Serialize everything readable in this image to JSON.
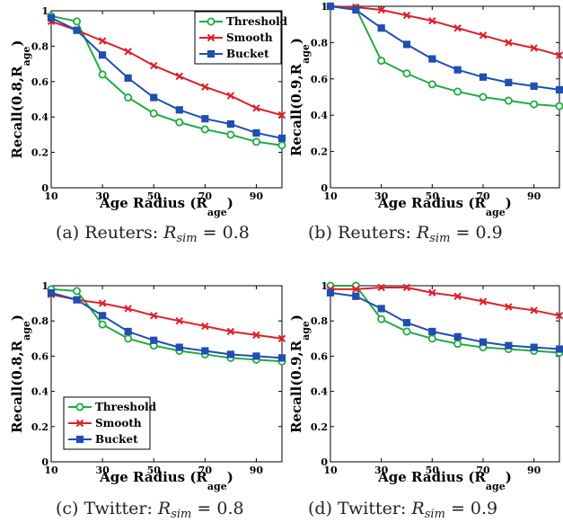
{
  "colors": {
    "Threshold": "#22aa44",
    "Smooth": "#dd1f2b",
    "Bucket": "#1f4fb0"
  },
  "chart_data": [
    {
      "type": "line",
      "caption": {
        "prefix": "(a) Reuters:",
        "symbol": "R",
        "subscript": "sim",
        "value": "= 0.8"
      },
      "xlabel": "Age Radius (R",
      "xlabel_sub": "age",
      "xlabel_close": ")",
      "ylabel": "Recall(0.8,R",
      "ylabel_sub": "age",
      "ylabel_close": ")",
      "xlim": [
        10,
        100
      ],
      "ylim": [
        0,
        1
      ],
      "xticks": [
        10,
        30,
        50,
        70,
        90
      ],
      "yticks": [
        0,
        0.2,
        0.4,
        0.6,
        0.8,
        1
      ],
      "yticklabels": [
        "0",
        "0.2",
        "0.4",
        "0.6",
        "0.8",
        "1"
      ],
      "legend": "top-right",
      "x": [
        10,
        20,
        30,
        40,
        50,
        60,
        70,
        80,
        90,
        100
      ],
      "series": [
        {
          "name": "Threshold",
          "marker": "circle",
          "values": [
            0.97,
            0.94,
            0.64,
            0.51,
            0.42,
            0.37,
            0.33,
            0.3,
            0.26,
            0.24
          ]
        },
        {
          "name": "Smooth",
          "marker": "x",
          "values": [
            0.94,
            0.89,
            0.83,
            0.77,
            0.69,
            0.63,
            0.57,
            0.52,
            0.45,
            0.41
          ]
        },
        {
          "name": "Bucket",
          "marker": "square",
          "values": [
            0.96,
            0.89,
            0.75,
            0.62,
            0.51,
            0.44,
            0.39,
            0.36,
            0.31,
            0.28
          ]
        }
      ]
    },
    {
      "type": "line",
      "caption": {
        "prefix": "(b) Reuters:",
        "symbol": "R",
        "subscript": "sim",
        "value": "= 0.9"
      },
      "xlabel": "Age Radius (R",
      "xlabel_sub": "age",
      "xlabel_close": ")",
      "ylabel": "Recall(0.9,R",
      "ylabel_sub": "age",
      "ylabel_close": ")",
      "xlim": [
        10,
        100
      ],
      "ylim": [
        0,
        1
      ],
      "xticks": [
        10,
        30,
        50,
        70,
        90
      ],
      "yticks": [
        0,
        0.2,
        0.4,
        0.6,
        0.8,
        1
      ],
      "yticklabels": [
        "0",
        "0.2",
        "0.4",
        "0.6",
        "0.8",
        "1"
      ],
      "legend": "none",
      "x": [
        10,
        20,
        30,
        40,
        50,
        60,
        70,
        80,
        90,
        100
      ],
      "series": [
        {
          "name": "Threshold",
          "marker": "circle",
          "values": [
            1.0,
            0.99,
            0.7,
            0.63,
            0.57,
            0.53,
            0.5,
            0.48,
            0.46,
            0.45
          ]
        },
        {
          "name": "Smooth",
          "marker": "x",
          "values": [
            1.0,
            0.995,
            0.98,
            0.95,
            0.92,
            0.88,
            0.84,
            0.8,
            0.77,
            0.73
          ]
        },
        {
          "name": "Bucket",
          "marker": "square",
          "values": [
            1.0,
            0.98,
            0.88,
            0.79,
            0.71,
            0.65,
            0.61,
            0.58,
            0.56,
            0.54
          ]
        }
      ]
    },
    {
      "type": "line",
      "caption": {
        "prefix": "(c) Twitter:",
        "symbol": "R",
        "subscript": "sim",
        "value": "= 0.8"
      },
      "xlabel": "Age Radius (R",
      "xlabel_sub": "age",
      "xlabel_close": ")",
      "ylabel": "Recall(0.8,R",
      "ylabel_sub": "age",
      "ylabel_close": ")",
      "xlim": [
        10,
        100
      ],
      "ylim": [
        0,
        1
      ],
      "xticks": [
        10,
        30,
        50,
        70,
        90
      ],
      "yticks": [
        0,
        0.2,
        0.4,
        0.6,
        0.8,
        1
      ],
      "yticklabels": [
        "0",
        "0.2",
        "0.4",
        "0.6",
        "0.8",
        "1"
      ],
      "legend": "bottom-left",
      "x": [
        10,
        20,
        30,
        40,
        50,
        60,
        70,
        80,
        90,
        100
      ],
      "series": [
        {
          "name": "Threshold",
          "marker": "circle",
          "values": [
            0.98,
            0.97,
            0.78,
            0.7,
            0.66,
            0.63,
            0.61,
            0.59,
            0.58,
            0.57
          ]
        },
        {
          "name": "Smooth",
          "marker": "x",
          "values": [
            0.95,
            0.92,
            0.9,
            0.87,
            0.83,
            0.8,
            0.77,
            0.74,
            0.72,
            0.7
          ]
        },
        {
          "name": "Bucket",
          "marker": "square",
          "values": [
            0.96,
            0.92,
            0.83,
            0.74,
            0.69,
            0.65,
            0.63,
            0.61,
            0.6,
            0.59
          ]
        }
      ]
    },
    {
      "type": "line",
      "caption": {
        "prefix": "(d) Twitter:",
        "symbol": "R",
        "subscript": "sim",
        "value": "= 0.9"
      },
      "xlabel": "Age Radius (R",
      "xlabel_sub": "age",
      "xlabel_close": ")",
      "ylabel": "Recall(0.9,R",
      "ylabel_sub": "age",
      "ylabel_close": ")",
      "xlim": [
        10,
        100
      ],
      "ylim": [
        0,
        1
      ],
      "xticks": [
        10,
        30,
        50,
        70,
        90
      ],
      "yticks": [
        0,
        0.2,
        0.4,
        0.6,
        0.8,
        1
      ],
      "yticklabels": [
        "0",
        "0.2",
        "0.4",
        "0.6",
        "0.8",
        "1"
      ],
      "legend": "none",
      "x": [
        10,
        20,
        30,
        40,
        50,
        60,
        70,
        80,
        90,
        100
      ],
      "series": [
        {
          "name": "Threshold",
          "marker": "circle",
          "values": [
            1.0,
            1.0,
            0.81,
            0.74,
            0.7,
            0.67,
            0.65,
            0.64,
            0.63,
            0.62
          ]
        },
        {
          "name": "Smooth",
          "marker": "x",
          "values": [
            0.98,
            0.98,
            0.99,
            0.99,
            0.96,
            0.94,
            0.91,
            0.88,
            0.86,
            0.83
          ]
        },
        {
          "name": "Bucket",
          "marker": "square",
          "values": [
            0.96,
            0.94,
            0.87,
            0.79,
            0.74,
            0.71,
            0.68,
            0.66,
            0.65,
            0.64
          ]
        }
      ]
    }
  ]
}
